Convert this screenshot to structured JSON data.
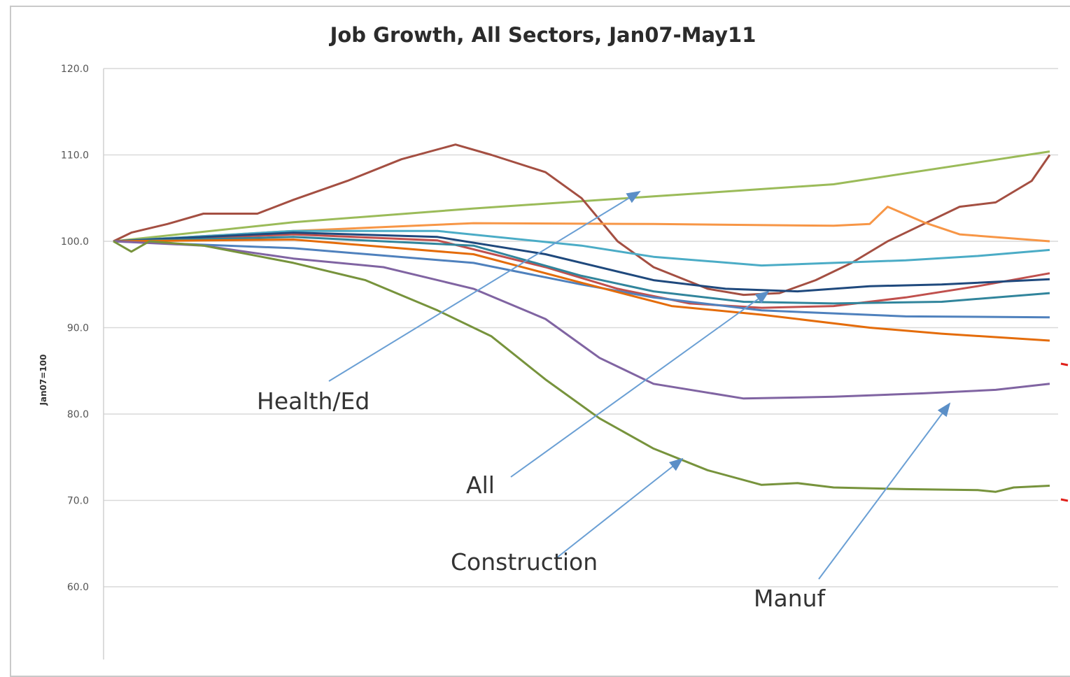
{
  "chart_data": {
    "type": "line",
    "title": "Job Growth, All Sectors, Jan07-May11",
    "xlabel": "",
    "ylabel": "Jan07=100",
    "ylim": [
      50,
      120
    ],
    "yticks": [
      "120.0",
      "110.0",
      "100.0",
      "90.0",
      "80.0",
      "70.0",
      "60.0"
    ],
    "grid": true,
    "x_months": 53,
    "series": [
      {
        "color": "#9bbb59",
        "values": [
          [
            0,
            100
          ],
          [
            10,
            102.2
          ],
          [
            20,
            103.8
          ],
          [
            30,
            105.2
          ],
          [
            40,
            106.6
          ],
          [
            52,
            110.4
          ]
        ]
      },
      {
        "color": "#a44f42",
        "values": [
          [
            0,
            100
          ],
          [
            1,
            101
          ],
          [
            3,
            102
          ],
          [
            5,
            103.2
          ],
          [
            8,
            103.2
          ],
          [
            10,
            104.8
          ],
          [
            13,
            107
          ],
          [
            16,
            109.5
          ],
          [
            19,
            111.2
          ],
          [
            21,
            110
          ],
          [
            24,
            108
          ],
          [
            26,
            105
          ],
          [
            28,
            100
          ],
          [
            30,
            97
          ],
          [
            33,
            94.5
          ],
          [
            35,
            93.8
          ],
          [
            37,
            94
          ],
          [
            39,
            95.5
          ],
          [
            41,
            97.5
          ],
          [
            43,
            100
          ],
          [
            45,
            102
          ],
          [
            47,
            104
          ],
          [
            49,
            104.5
          ],
          [
            51,
            107
          ],
          [
            52,
            110
          ]
        ]
      },
      {
        "color": "#f79646",
        "values": [
          [
            0,
            100
          ],
          [
            10,
            101.2
          ],
          [
            20,
            102.1
          ],
          [
            30,
            102
          ],
          [
            40,
            101.8
          ],
          [
            42,
            102
          ],
          [
            43,
            104
          ],
          [
            45,
            102.2
          ],
          [
            47,
            100.8
          ],
          [
            52,
            100
          ]
        ]
      },
      {
        "color": "#4bacc6",
        "values": [
          [
            0,
            100
          ],
          [
            10,
            101.2
          ],
          [
            18,
            101.2
          ],
          [
            26,
            99.5
          ],
          [
            30,
            98.2
          ],
          [
            36,
            97.2
          ],
          [
            40,
            97.5
          ],
          [
            44,
            97.8
          ],
          [
            48,
            98.3
          ],
          [
            52,
            99
          ]
        ]
      },
      {
        "color": "#c0504d",
        "values": [
          [
            0,
            100
          ],
          [
            10,
            100.8
          ],
          [
            18,
            100.1
          ],
          [
            24,
            97
          ],
          [
            28,
            94.5
          ],
          [
            32,
            92.8
          ],
          [
            36,
            92.3
          ],
          [
            40,
            92.5
          ],
          [
            44,
            93.5
          ],
          [
            48,
            94.8
          ],
          [
            52,
            96.3
          ]
        ]
      },
      {
        "color": "#1f497d",
        "values": [
          [
            0,
            100
          ],
          [
            10,
            101
          ],
          [
            18,
            100.5
          ],
          [
            24,
            98.5
          ],
          [
            30,
            95.5
          ],
          [
            34,
            94.5
          ],
          [
            38,
            94.2
          ],
          [
            42,
            94.8
          ],
          [
            46,
            95
          ],
          [
            52,
            95.6
          ]
        ]
      },
      {
        "color": "#31859c",
        "values": [
          [
            0,
            100
          ],
          [
            10,
            100.5
          ],
          [
            20,
            99.5
          ],
          [
            26,
            96
          ],
          [
            30,
            94.2
          ],
          [
            35,
            93
          ],
          [
            40,
            92.8
          ],
          [
            46,
            93
          ],
          [
            52,
            94
          ]
        ]
      },
      {
        "color": "#4f81bd",
        "values": [
          [
            0,
            100
          ],
          [
            10,
            99.2
          ],
          [
            20,
            97.5
          ],
          [
            26,
            95
          ],
          [
            30,
            93.5
          ],
          [
            36,
            92
          ],
          [
            44,
            91.3
          ],
          [
            52,
            91.2
          ]
        ]
      },
      {
        "color": "#e46c0a",
        "values": [
          [
            0,
            100
          ],
          [
            10,
            100.2
          ],
          [
            20,
            98.5
          ],
          [
            26,
            95.2
          ],
          [
            31,
            92.5
          ],
          [
            36,
            91.5
          ],
          [
            42,
            90
          ],
          [
            46,
            89.3
          ],
          [
            52,
            88.5
          ]
        ]
      },
      {
        "color": "#8064a2",
        "values": [
          [
            0,
            100
          ],
          [
            5,
            99.5
          ],
          [
            10,
            98
          ],
          [
            15,
            97
          ],
          [
            20,
            94.5
          ],
          [
            24,
            91
          ],
          [
            27,
            86.5
          ],
          [
            30,
            83.5
          ],
          [
            35,
            81.8
          ],
          [
            40,
            82
          ],
          [
            45,
            82.4
          ],
          [
            49,
            82.8
          ],
          [
            52,
            83.5
          ]
        ]
      },
      {
        "color": "#77933c",
        "values": [
          [
            0,
            100
          ],
          [
            1,
            98.8
          ],
          [
            2,
            100
          ],
          [
            5,
            99.5
          ],
          [
            10,
            97.5
          ],
          [
            14,
            95.5
          ],
          [
            18,
            92
          ],
          [
            21,
            89
          ],
          [
            24,
            84
          ],
          [
            27,
            79.5
          ],
          [
            30,
            76
          ],
          [
            33,
            73.5
          ],
          [
            36,
            71.8
          ],
          [
            38,
            72
          ],
          [
            40,
            71.5
          ],
          [
            44,
            71.3
          ],
          [
            48,
            71.2
          ],
          [
            49,
            71
          ],
          [
            50,
            71.5
          ],
          [
            52,
            71.7
          ]
        ]
      }
    ],
    "annotations": [
      {
        "label": "Health/Ed"
      },
      {
        "label": "All"
      },
      {
        "label": "Construction"
      },
      {
        "label": "Manuf"
      }
    ]
  }
}
